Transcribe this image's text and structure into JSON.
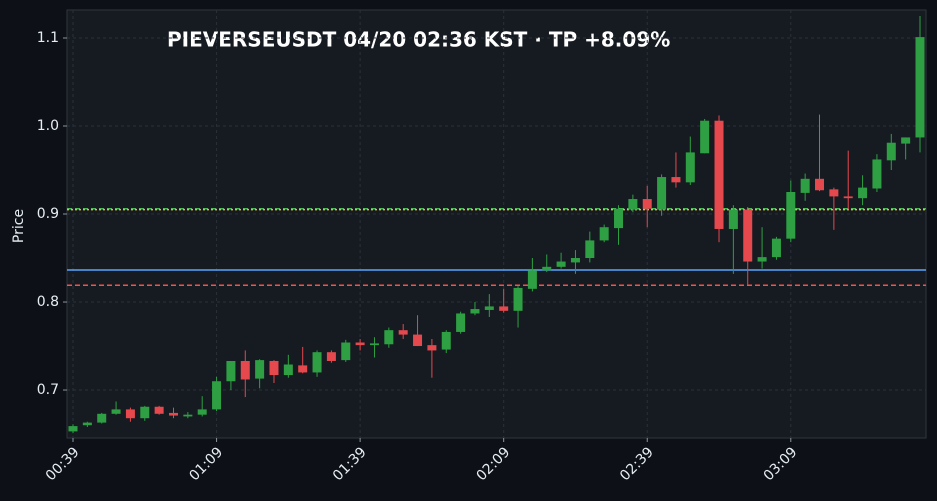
{
  "chart_data": {
    "type": "candlestick",
    "title": "PIEVERSEUSDT  04/20 02:36 KST  ·  TP +8.09%",
    "y_label": "Price",
    "categories": [
      "00:39",
      null,
      null,
      null,
      null,
      null,
      null,
      null,
      null,
      null,
      "01:09",
      null,
      null,
      null,
      null,
      null,
      null,
      null,
      null,
      null,
      "01:39",
      null,
      null,
      null,
      null,
      null,
      null,
      null,
      null,
      null,
      "02:09",
      null,
      null,
      null,
      null,
      null,
      null,
      null,
      null,
      null,
      "02:39",
      null,
      null,
      null,
      null,
      null,
      null,
      null,
      null,
      null,
      "03:09",
      null,
      null,
      null,
      null,
      null,
      null,
      null,
      null,
      null
    ],
    "open": [
      0.653,
      0.66,
      0.663,
      0.673,
      0.678,
      0.668,
      0.681,
      0.674,
      0.67,
      0.672,
      0.678,
      0.71,
      0.733,
      0.713,
      0.733,
      0.717,
      0.728,
      0.72,
      0.743,
      0.734,
      0.754,
      0.751,
      0.752,
      0.768,
      0.763,
      0.751,
      0.746,
      0.766,
      0.787,
      0.791,
      0.795,
      0.79,
      0.815,
      0.836,
      0.84,
      0.845,
      0.85,
      0.87,
      0.884,
      0.905,
      0.917,
      0.905,
      0.942,
      0.936,
      0.969,
      1.006,
      0.883,
      0.905,
      0.846,
      0.851,
      0.872,
      0.924,
      0.94,
      0.928,
      0.92,
      0.918,
      0.929,
      0.961,
      0.98,
      0.987
    ],
    "high": [
      0.661,
      0.664,
      0.674,
      0.687,
      0.68,
      0.682,
      0.682,
      0.68,
      0.675,
      0.693,
      0.715,
      0.733,
      0.745,
      0.735,
      0.734,
      0.74,
      0.749,
      0.745,
      0.745,
      0.757,
      0.758,
      0.76,
      0.771,
      0.775,
      0.785,
      0.758,
      0.768,
      0.789,
      0.8,
      0.809,
      0.815,
      0.818,
      0.85,
      0.854,
      0.856,
      0.859,
      0.88,
      0.888,
      0.91,
      0.922,
      0.932,
      0.945,
      0.97,
      0.988,
      1.008,
      1.012,
      0.91,
      0.908,
      0.885,
      0.874,
      0.938,
      0.946,
      1.013,
      0.93,
      0.972,
      0.944,
      0.968,
      0.991,
      0.987,
      1.125
    ],
    "low": [
      0.651,
      0.658,
      0.662,
      0.672,
      0.664,
      0.665,
      0.672,
      0.668,
      0.668,
      0.67,
      0.676,
      0.7,
      0.692,
      0.702,
      0.708,
      0.714,
      0.719,
      0.715,
      0.731,
      0.732,
      0.745,
      0.737,
      0.748,
      0.758,
      0.75,
      0.714,
      0.742,
      0.764,
      0.785,
      0.783,
      0.788,
      0.771,
      0.812,
      0.834,
      0.838,
      0.832,
      0.845,
      0.868,
      0.865,
      0.902,
      0.885,
      0.898,
      0.93,
      0.933,
      0.969,
      0.868,
      0.832,
      0.82,
      0.838,
      0.848,
      0.868,
      0.915,
      0.926,
      0.882,
      0.905,
      0.91,
      0.925,
      0.95,
      0.962,
      0.97
    ],
    "close": [
      0.659,
      0.663,
      0.673,
      0.678,
      0.668,
      0.681,
      0.673,
      0.671,
      0.672,
      0.678,
      0.71,
      0.733,
      0.712,
      0.734,
      0.717,
      0.729,
      0.72,
      0.743,
      0.733,
      0.754,
      0.751,
      0.753,
      0.768,
      0.763,
      0.75,
      0.745,
      0.766,
      0.787,
      0.792,
      0.795,
      0.79,
      0.816,
      0.836,
      0.84,
      0.846,
      0.85,
      0.87,
      0.885,
      0.906,
      0.917,
      0.906,
      0.942,
      0.936,
      0.97,
      1.006,
      0.883,
      0.905,
      0.846,
      0.851,
      0.872,
      0.925,
      0.94,
      0.927,
      0.92,
      0.918,
      0.93,
      0.962,
      0.981,
      0.987,
      1.101
    ],
    "up_color": "#2ea043",
    "down_color": "#e5484d",
    "hlines": [
      {
        "value": 0.906,
        "color": "#3fb950",
        "style": "dashed"
      },
      {
        "value": 0.905,
        "color": "#d4c24a",
        "style": "dotted"
      },
      {
        "value": 0.8364,
        "color": "#58a6ff",
        "style": "solid"
      },
      {
        "value": 0.819,
        "color": "#f85149",
        "style": "dashed"
      }
    ],
    "ylim": [
      0.6455,
      1.1318
    ],
    "yticks": [
      0.7,
      0.8,
      0.9,
      {
        "value": 1.0,
        "label": "1.0"
      },
      1.1
    ],
    "grid": true
  }
}
